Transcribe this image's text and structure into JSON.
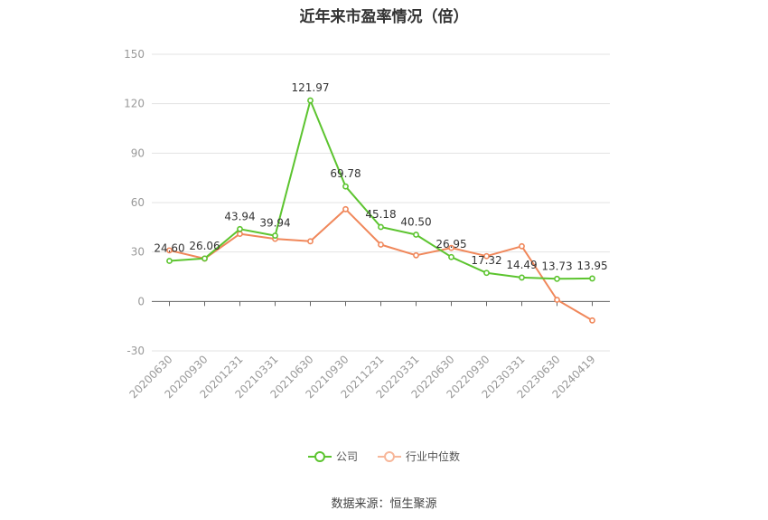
{
  "chart_data": {
    "type": "line",
    "title": "近年来市盈率情况（倍）",
    "categories": [
      "20200630",
      "20200930",
      "20201231",
      "20210331",
      "20210630",
      "20210930",
      "20211231",
      "20220331",
      "20220630",
      "20220930",
      "20230331",
      "20230630",
      "20240419"
    ],
    "series": [
      {
        "name": "公司",
        "color": "#5cc42f",
        "values": [
          24.6,
          26.06,
          43.94,
          39.94,
          121.97,
          69.78,
          45.18,
          40.5,
          26.95,
          17.32,
          14.49,
          13.73,
          13.95
        ],
        "labels": [
          "24.60",
          "26.06",
          "43.94",
          "39.94",
          "121.97",
          "69.78",
          "45.18",
          "40.50",
          "26.95",
          "17.32",
          "14.49",
          "13.73",
          "13.95"
        ]
      },
      {
        "name": "行业中位数",
        "color": "#f0875a",
        "values": [
          31,
          26,
          41,
          38,
          36.5,
          56,
          34.5,
          28,
          32.5,
          27.5,
          33.5,
          1,
          -11.5
        ]
      }
    ],
    "ylim": [
      -30,
      150
    ],
    "yticks": [
      "150",
      "120",
      "90",
      "60",
      "30",
      "0",
      "-30"
    ],
    "ytick_values": [
      150,
      120,
      90,
      60,
      30,
      0,
      -30
    ],
    "grid": true,
    "legend_position": "bottom-center"
  },
  "source": "数据来源：恒生聚源"
}
